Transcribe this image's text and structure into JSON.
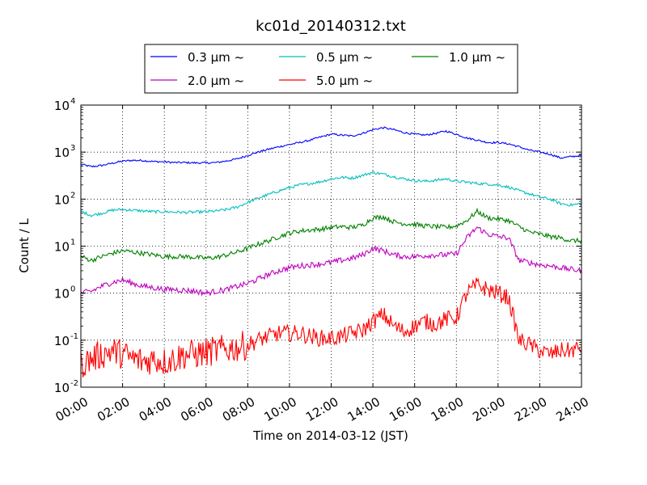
{
  "chart_data": {
    "type": "line",
    "title": "kc01d_20140312.txt",
    "xlabel": "Time on 2014-03-12 (JST)",
    "ylabel": "Count / L",
    "yscale": "log",
    "xlim": [
      "00:00",
      "24:00"
    ],
    "ylim": [
      0.01,
      10000
    ],
    "grid": true,
    "legend": {
      "position": "top-center",
      "columns": 3
    },
    "x_ticks": [
      "00:00",
      "02:00",
      "04:00",
      "06:00",
      "08:00",
      "10:00",
      "12:00",
      "14:00",
      "16:00",
      "18:00",
      "20:00",
      "22:00",
      "24:00"
    ],
    "y_ticks": [
      {
        "base": "10",
        "exp": "-2",
        "value": 0.01
      },
      {
        "base": "10",
        "exp": "-1",
        "value": 0.1
      },
      {
        "base": "10",
        "exp": "0",
        "value": 1
      },
      {
        "base": "10",
        "exp": "1",
        "value": 10
      },
      {
        "base": "10",
        "exp": "2",
        "value": 100
      },
      {
        "base": "10",
        "exp": "3",
        "value": 1000
      },
      {
        "base": "10",
        "exp": "4",
        "value": 10000
      }
    ],
    "x_hours": [
      0,
      0.5,
      1,
      1.5,
      2,
      2.5,
      3,
      3.5,
      4,
      4.5,
      5,
      5.5,
      6,
      6.5,
      7,
      7.5,
      8,
      8.5,
      9,
      9.5,
      10,
      10.5,
      11,
      11.5,
      12,
      12.5,
      13,
      13.5,
      14,
      14.5,
      15,
      15.5,
      16,
      16.5,
      17,
      17.5,
      18,
      18.5,
      19,
      19.5,
      20,
      20.5,
      21,
      21.5,
      22,
      22.5,
      23,
      23.5,
      24
    ],
    "series": [
      {
        "name": "0.3 μm ~",
        "color": "#0000ff",
        "values": [
          550,
          490,
          520,
          580,
          640,
          670,
          660,
          630,
          620,
          600,
          600,
          590,
          590,
          600,
          650,
          720,
          850,
          1000,
          1150,
          1300,
          1450,
          1600,
          1800,
          2100,
          2400,
          2300,
          2200,
          2500,
          3000,
          3300,
          3000,
          2600,
          2400,
          2300,
          2500,
          2800,
          2400,
          2000,
          1800,
          1600,
          1600,
          1500,
          1300,
          1100,
          1000,
          900,
          750,
          800,
          850
        ]
      },
      {
        "name": "0.5 μm ~",
        "color": "#00bfbf",
        "values": [
          55,
          45,
          50,
          58,
          60,
          58,
          56,
          54,
          54,
          53,
          52,
          53,
          54,
          56,
          60,
          68,
          85,
          105,
          125,
          150,
          175,
          200,
          215,
          235,
          270,
          290,
          280,
          320,
          370,
          340,
          300,
          270,
          250,
          240,
          250,
          270,
          240,
          230,
          215,
          210,
          200,
          180,
          150,
          130,
          110,
          100,
          80,
          75,
          80
        ]
      },
      {
        "name": "1.0 μm ~",
        "color": "#008000",
        "values": [
          6,
          5,
          6,
          7,
          8,
          7.5,
          7,
          6.5,
          6,
          6,
          6,
          5.8,
          5.5,
          5.8,
          6.5,
          7.5,
          9,
          11,
          13,
          16,
          19,
          21,
          22,
          23,
          25,
          26,
          25,
          28,
          40,
          42,
          33,
          30,
          29,
          27,
          26,
          25,
          27,
          35,
          55,
          40,
          38,
          35,
          26,
          20,
          18,
          16,
          15,
          13,
          13
        ]
      },
      {
        "name": "2.0 μm ~",
        "color": "#bf00bf",
        "values": [
          1.0,
          1.1,
          1.4,
          1.7,
          1.9,
          1.6,
          1.4,
          1.3,
          1.2,
          1.2,
          1.15,
          1.1,
          1.0,
          1.1,
          1.2,
          1.4,
          1.6,
          2.0,
          2.5,
          3.0,
          3.5,
          3.8,
          4.0,
          4.2,
          4.5,
          5.0,
          5.5,
          6.5,
          9.0,
          8.0,
          6.5,
          6.0,
          6.0,
          6.3,
          6.5,
          6.5,
          6.8,
          15,
          25,
          18,
          16,
          15,
          5,
          4.5,
          4.0,
          3.8,
          3.5,
          3.2,
          3.0
        ]
      },
      {
        "name": "5.0 μm ~",
        "color": "#ff0000",
        "values": [
          0.03,
          0.04,
          0.05,
          0.06,
          0.05,
          0.04,
          0.035,
          0.04,
          0.035,
          0.04,
          0.05,
          0.05,
          0.055,
          0.06,
          0.065,
          0.07,
          0.08,
          0.1,
          0.12,
          0.14,
          0.14,
          0.14,
          0.12,
          0.11,
          0.11,
          0.12,
          0.14,
          0.16,
          0.25,
          0.35,
          0.2,
          0.15,
          0.2,
          0.25,
          0.22,
          0.28,
          0.3,
          1.0,
          1.5,
          1.2,
          1.0,
          0.8,
          0.1,
          0.08,
          0.06,
          0.05,
          0.06,
          0.06,
          0.07
        ]
      }
    ]
  }
}
